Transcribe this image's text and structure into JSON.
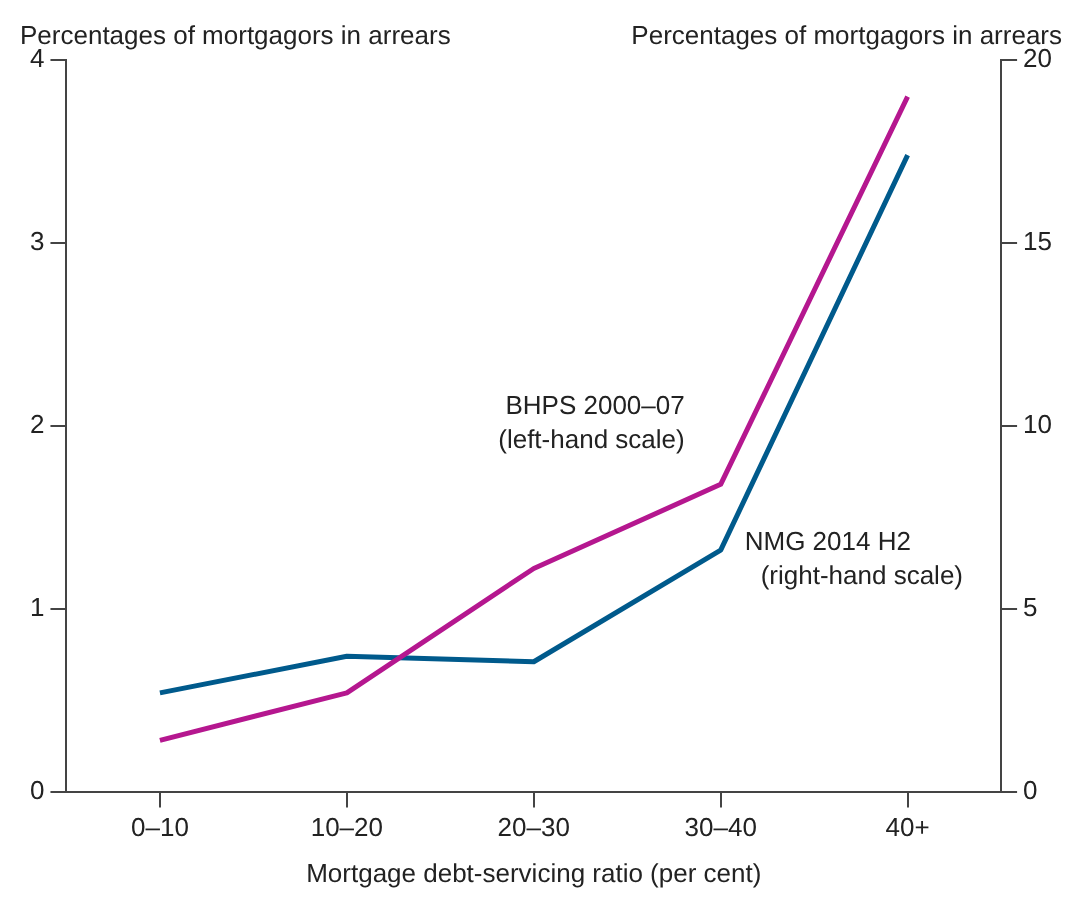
{
  "chart_data": {
    "type": "line",
    "xlabel": "Mortgage debt-servicing ratio (per cent)",
    "ylabel": "Percentages of mortgagors in arrears",
    "y2label": "Percentages of mortgagors in arrears",
    "categories": [
      "0–10",
      "10–20",
      "20–30",
      "30–40",
      "40+"
    ],
    "series": [
      {
        "name": "BHPS 2000–07",
        "color": "#b5178f",
        "values": [
          0.28,
          0.54,
          1.22,
          1.68,
          3.8
        ]
      },
      {
        "name": "NMG 2014 H2",
        "color": "#005a8c",
        "axis": "y2",
        "values": [
          2.7,
          3.7,
          3.55,
          6.6,
          17.4
        ]
      }
    ],
    "annotations": [
      "(left-hand scale)",
      "(right-hand scale)"
    ],
    "ylim": [
      0,
      4
    ],
    "yticks": [
      0,
      1,
      2,
      3,
      4
    ],
    "y2lim": [
      0,
      20
    ],
    "y2ticks": [
      0,
      5,
      10,
      15,
      20
    ],
    "grid": false,
    "legend": false,
    "marker": "none",
    "line_style": "solid"
  }
}
